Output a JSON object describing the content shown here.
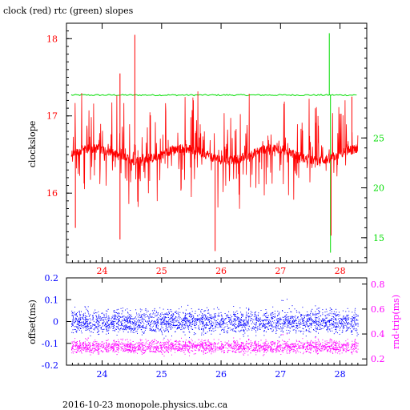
{
  "title": "clock (red) rtc (green) slopes",
  "footer": "2016-10-23  monopole.physics.ubc.ca",
  "colors": {
    "clock": "#ff0000",
    "rtc": "#00dd00",
    "offset": "#0000ff",
    "roundtrip": "#ff00ff",
    "axis": "#000000"
  },
  "chart_data": [
    {
      "type": "line",
      "title": "clock (red) rtc (green) slopes",
      "ylabel": "clockslope",
      "x_ticks": [
        "24",
        "25",
        "26",
        "27",
        "28"
      ],
      "x_tick_values": [
        24,
        25,
        26,
        27,
        28
      ],
      "xlim": [
        23.4,
        28.45
      ],
      "ylim_left": [
        15.1,
        18.2
      ],
      "y_ticks_left": [
        "16",
        "17",
        "18"
      ],
      "y_tick_values_left": [
        16,
        17,
        18
      ],
      "ylim_right": [
        12.5,
        36.5
      ],
      "y_ticks_right": [
        "15",
        "20",
        "25"
      ],
      "y_tick_values_right": [
        15,
        20,
        25
      ],
      "series": [
        {
          "name": "clock",
          "axis": "left",
          "color": "#ff0000",
          "baseline": 16.5,
          "spread": 0.3,
          "spikes": [
            [
              23.55,
              15.55
            ],
            [
              24.55,
              18.05
            ],
            [
              24.3,
              17.55
            ],
            [
              25.9,
              15.25
            ],
            [
              27.85,
              15.45
            ],
            [
              24.3,
              15.4
            ],
            [
              28.2,
              17.25
            ]
          ]
        },
        {
          "name": "rtc",
          "axis": "right",
          "color": "#00dd00",
          "baseline": 29.3,
          "spikes": [
            [
              27.82,
              35.5
            ],
            [
              27.84,
              13.5
            ]
          ]
        }
      ]
    },
    {
      "type": "scatter",
      "ylabel_left": "offset(ms)",
      "ylabel_right": "rnd-trip(ms)",
      "x_ticks": [
        "24",
        "25",
        "26",
        "27",
        "28"
      ],
      "x_tick_values": [
        24,
        25,
        26,
        27,
        28
      ],
      "xlim": [
        23.4,
        28.45
      ],
      "ylim_left": [
        -0.2,
        0.2
      ],
      "y_ticks_left": [
        "0.2",
        "0.1",
        "0",
        "-0.1",
        "-0.2"
      ],
      "y_tick_values_left": [
        0.2,
        0.1,
        0,
        -0.1,
        -0.2
      ],
      "ylim_right": [
        0.15,
        0.85
      ],
      "y_ticks_right": [
        "0.8",
        "0.6",
        "0.4",
        "0.2"
      ],
      "y_tick_values_right": [
        0.8,
        0.6,
        0.4,
        0.2
      ],
      "series": [
        {
          "name": "offset",
          "axis": "left",
          "color": "#0000ff",
          "center": 0.0,
          "spread": 0.04
        },
        {
          "name": "rnd-trip",
          "axis": "right",
          "color": "#ff00ff",
          "center": 0.3,
          "spread": 0.04
        }
      ]
    }
  ]
}
